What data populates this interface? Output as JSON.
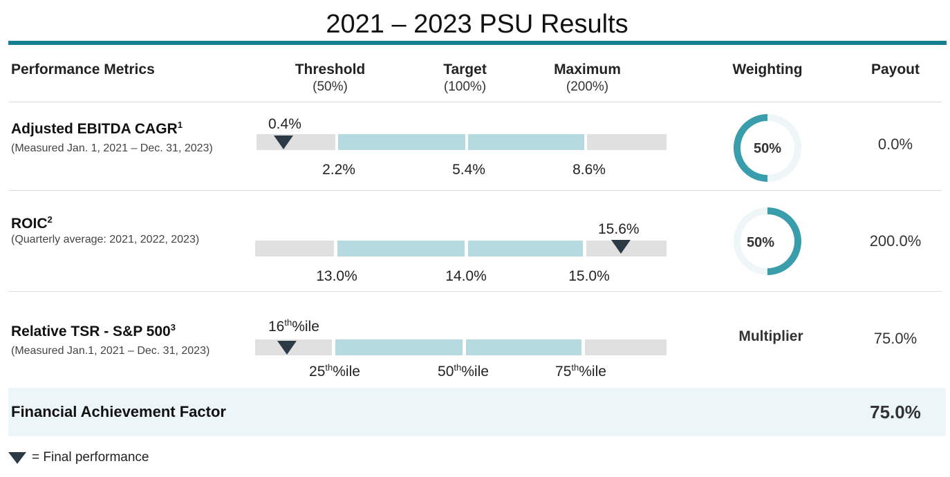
{
  "title": "2021 – 2023 PSU Results",
  "header": {
    "metrics": "Performance Metrics",
    "threshold": "Threshold",
    "threshold_sub": "(50%)",
    "target": "Target",
    "target_sub": "(100%)",
    "maximum": "Maximum",
    "maximum_sub": "(200%)",
    "weighting": "Weighting",
    "payout": "Payout"
  },
  "rows": [
    {
      "name": "Adjusted EBITDA CAGR",
      "footnote": "1",
      "description": "(Measured Jan. 1, 2021 – Dec. 31, 2023)",
      "result": "0.4%",
      "threshold": "2.2%",
      "target": "5.4%",
      "maximum": "8.6%",
      "weighting": "50%",
      "weighting_fraction": 0.5,
      "payout": "0.0%"
    },
    {
      "name": "ROIC",
      "footnote": "2",
      "description": "(Quarterly average: 2021, 2022, 2023)",
      "result": "15.6%",
      "threshold": "13.0%",
      "target": "14.0%",
      "maximum": "15.0%",
      "weighting": "50%",
      "weighting_fraction": 0.5,
      "payout": "200.0%"
    },
    {
      "name": "Relative TSR - S&P 500",
      "footnote": "3",
      "description": "(Measured Jan.1, 2021 – Dec. 31, 2023)",
      "result_num": "16",
      "result_suffix": "th",
      "result_unit": "%ile",
      "threshold_num": "25",
      "target_num": "50",
      "maximum_num": "75",
      "ordinal_suffix": "th",
      "unit": "%ile",
      "weighting": "Multiplier",
      "payout": "75.0%"
    }
  ],
  "summary": {
    "label": "Financial Achievement Factor",
    "value": "75.0%"
  },
  "legend": "= Final performance",
  "colors": {
    "accent": "#14808f",
    "bar_blue": "#b4dae0",
    "bar_grey": "#e0e0e0",
    "marker": "#2c3a45",
    "donut_track": "#eef6f8"
  }
}
